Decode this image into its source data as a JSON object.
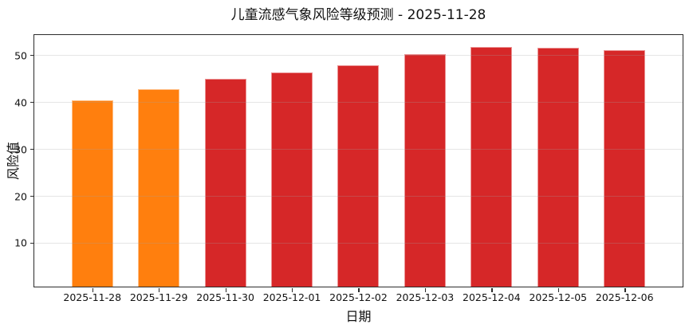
{
  "chart_data": {
    "type": "bar",
    "title": "儿童流感气象风险等级预测 - 2025-11-28",
    "xlabel": "日期",
    "ylabel": "风险值",
    "categories": [
      "2025-11-28",
      "2025-11-29",
      "2025-11-30",
      "2025-12-01",
      "2025-12-02",
      "2025-12-03",
      "2025-12-04",
      "2025-12-05",
      "2025-12-06"
    ],
    "values": [
      40.5,
      43.0,
      45.2,
      46.6,
      48.0,
      50.5,
      52.0,
      51.7,
      51.2
    ],
    "bar_colors": [
      "#ff7f0e",
      "#ff7f0e",
      "#d62728",
      "#d62728",
      "#d62728",
      "#d62728",
      "#d62728",
      "#d62728",
      "#d62728"
    ],
    "yticks": [
      10,
      20,
      30,
      40,
      50
    ],
    "ylim": [
      0.8,
      54.5
    ],
    "grid": "horizontal",
    "legend": "none",
    "colors": {
      "orange_bar": "#ff7f0e",
      "red_bar": "#d62728",
      "spine": "#2b2b2b",
      "grid": "#e6e6e6",
      "background": "#ffffff",
      "text": "#111111"
    }
  }
}
